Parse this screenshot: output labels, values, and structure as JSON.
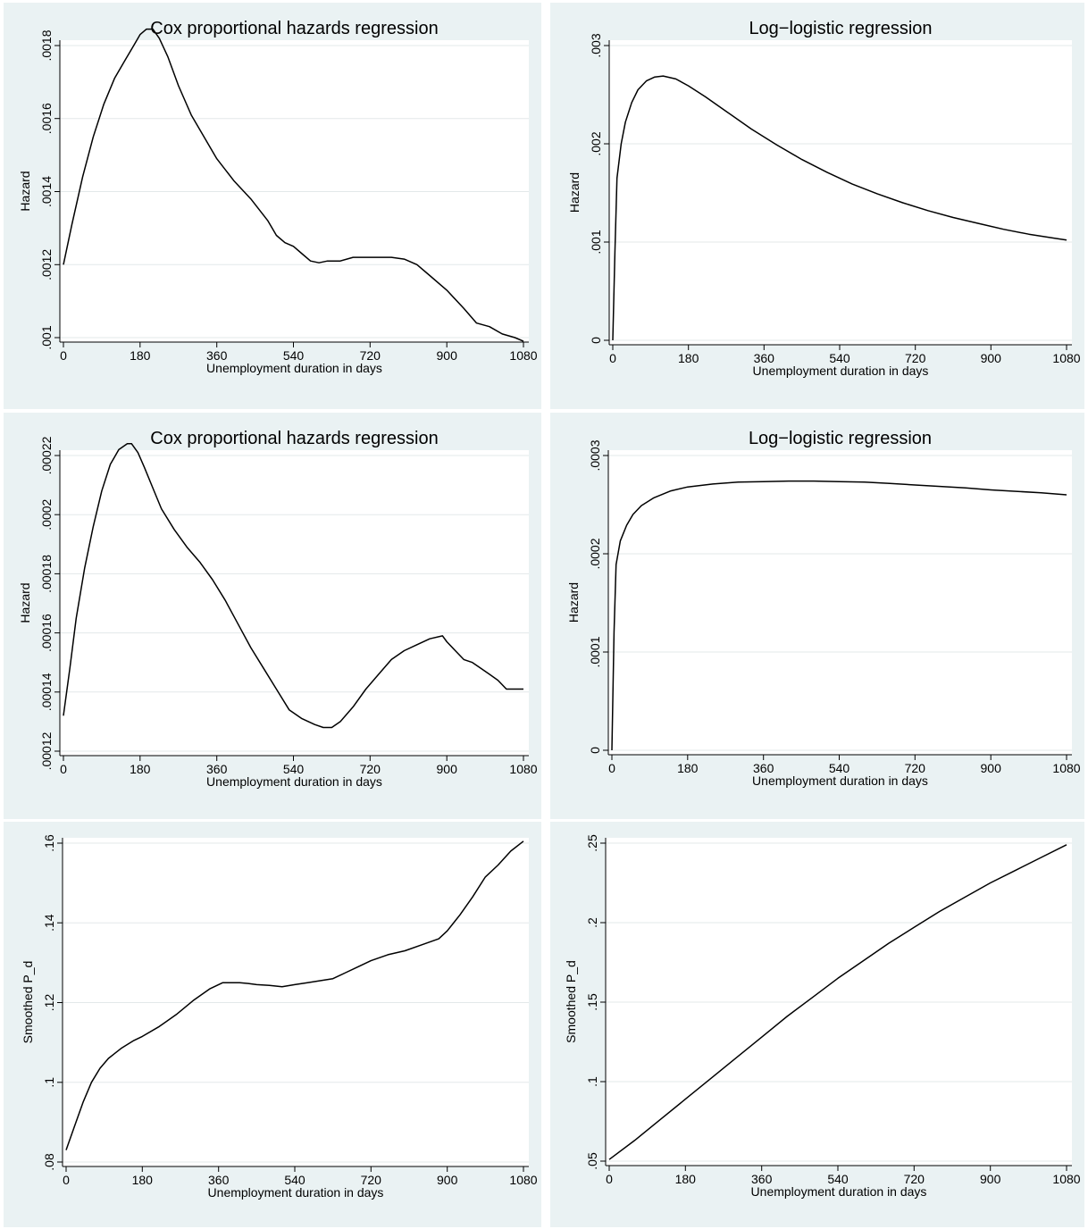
{
  "chart_data": [
    {
      "type": "line",
      "title": "Cox proportional hazards regression",
      "xlabel": "Unemployment duration in days",
      "ylabel": "Hazard",
      "xlim": [
        0,
        1080
      ],
      "ylim": [
        0.001,
        0.0018
      ],
      "xticks": [
        0,
        180,
        360,
        540,
        720,
        900,
        1080
      ],
      "xtick_labels": [
        "0",
        "180",
        "360",
        "540",
        "720",
        "900",
        "1080"
      ],
      "yticks": [
        0.001,
        0.0012,
        0.0014,
        0.0016,
        0.0018
      ],
      "ytick_labels": [
        ".001",
        ".0012",
        ".0014",
        ".0016",
        ".0018"
      ],
      "grid": true,
      "series": [
        {
          "x": [
            0,
            20,
            45,
            70,
            95,
            120,
            145,
            165,
            180,
            195,
            210,
            225,
            245,
            270,
            300,
            330,
            360,
            400,
            440,
            480,
            500,
            520,
            540,
            560,
            580,
            600,
            620,
            650,
            680,
            710,
            740,
            770,
            800,
            830,
            860,
            900,
            940,
            970,
            1000,
            1030,
            1060,
            1080
          ],
          "y": [
            0.0012,
            0.00131,
            0.00144,
            0.00155,
            0.00164,
            0.00171,
            0.00176,
            0.0018,
            0.00183,
            0.001845,
            0.001845,
            0.00182,
            0.00177,
            0.00169,
            0.00161,
            0.00155,
            0.00149,
            0.00143,
            0.00138,
            0.00132,
            0.00128,
            0.00126,
            0.00125,
            0.00123,
            0.00121,
            0.001205,
            0.00121,
            0.00121,
            0.00122,
            0.00122,
            0.00122,
            0.00122,
            0.001215,
            0.0012,
            0.00117,
            0.00113,
            0.00108,
            0.00104,
            0.00103,
            0.00101,
            0.001,
            0.00099
          ]
        }
      ]
    },
    {
      "type": "line",
      "title": "Log−logistic regression",
      "xlabel": "Unemployment duration in days",
      "ylabel": "Hazard",
      "xlim": [
        0,
        1080
      ],
      "ylim": [
        0,
        0.003
      ],
      "xticks": [
        0,
        180,
        360,
        540,
        720,
        900,
        1080
      ],
      "xtick_labels": [
        "0",
        "180",
        "360",
        "540",
        "720",
        "900",
        "1080"
      ],
      "yticks": [
        0,
        0.001,
        0.002,
        0.003
      ],
      "ytick_labels": [
        "0",
        ".001",
        ".002",
        ".003"
      ],
      "grid": true,
      "series": [
        {
          "x": [
            0,
            5,
            10,
            20,
            30,
            45,
            60,
            80,
            100,
            120,
            150,
            180,
            220,
            270,
            330,
            390,
            450,
            510,
            570,
            630,
            690,
            750,
            810,
            870,
            930,
            990,
            1050,
            1080
          ],
          "y": [
            0,
            0.0009,
            0.00165,
            0.002,
            0.00222,
            0.00242,
            0.00255,
            0.00264,
            0.00268,
            0.00269,
            0.00266,
            0.00259,
            0.00248,
            0.00233,
            0.00215,
            0.00199,
            0.00184,
            0.00171,
            0.00159,
            0.00149,
            0.0014,
            0.00132,
            0.00125,
            0.00119,
            0.00113,
            0.00108,
            0.00104,
            0.00102
          ]
        }
      ]
    },
    {
      "type": "line",
      "title": "Cox proportional hazards regression",
      "xlabel": "Unemployment duration in days",
      "ylabel": "Hazard",
      "xlim": [
        0,
        1080
      ],
      "ylim": [
        0.00012,
        0.00022
      ],
      "xticks": [
        0,
        180,
        360,
        540,
        720,
        900,
        1080
      ],
      "xtick_labels": [
        "0",
        "180",
        "360",
        "540",
        "720",
        "900",
        "1080"
      ],
      "yticks": [
        0.00012,
        0.00014,
        0.00016,
        0.00018,
        0.0002,
        0.00022
      ],
      "ytick_labels": [
        ".00012",
        ".00014",
        ".00016",
        ".00018",
        ".0002",
        ".00022"
      ],
      "grid": true,
      "series": [
        {
          "x": [
            0,
            15,
            30,
            50,
            70,
            90,
            110,
            130,
            150,
            160,
            175,
            190,
            210,
            230,
            260,
            290,
            320,
            350,
            380,
            410,
            440,
            470,
            500,
            530,
            560,
            590,
            610,
            630,
            650,
            680,
            710,
            740,
            770,
            800,
            830,
            860,
            890,
            900,
            920,
            940,
            960,
            980,
            1000,
            1020,
            1040,
            1060,
            1080
          ],
          "y": [
            0.000132,
            0.000148,
            0.000165,
            0.000182,
            0.000196,
            0.000208,
            0.000217,
            0.000222,
            0.000224,
            0.000224,
            0.000221,
            0.000216,
            0.000209,
            0.000202,
            0.000195,
            0.000189,
            0.000184,
            0.000178,
            0.000171,
            0.000163,
            0.000155,
            0.000148,
            0.000141,
            0.000134,
            0.000131,
            0.000129,
            0.000128,
            0.000128,
            0.00013,
            0.000135,
            0.000141,
            0.000146,
            0.000151,
            0.000154,
            0.000156,
            0.000158,
            0.000159,
            0.000157,
            0.000154,
            0.000151,
            0.00015,
            0.000148,
            0.000146,
            0.000144,
            0.000141,
            0.000141,
            0.000141
          ]
        }
      ]
    },
    {
      "type": "line",
      "title": "Log−logistic regression",
      "xlabel": "Unemployment duration in days",
      "ylabel": "Hazard",
      "xlim": [
        0,
        1080
      ],
      "ylim": [
        0,
        0.0003
      ],
      "xticks": [
        0,
        180,
        360,
        540,
        720,
        900,
        1080
      ],
      "xtick_labels": [
        "0",
        "180",
        "360",
        "540",
        "720",
        "900",
        "1080"
      ],
      "yticks": [
        0,
        0.0001,
        0.0002,
        0.0003
      ],
      "ytick_labels": [
        "0",
        ".0001",
        ".0002",
        ".0003"
      ],
      "grid": true,
      "series": [
        {
          "x": [
            0,
            5,
            10,
            20,
            35,
            50,
            70,
            100,
            140,
            180,
            240,
            300,
            360,
            420,
            480,
            540,
            600,
            660,
            720,
            780,
            840,
            900,
            960,
            1020,
            1080
          ],
          "y": [
            0,
            0.00012,
            0.000189,
            0.000213,
            0.000229,
            0.00024,
            0.000249,
            0.000257,
            0.000264,
            0.000268,
            0.000271,
            0.000273,
            0.0002735,
            0.000274,
            0.000274,
            0.0002735,
            0.000273,
            0.0002715,
            0.00027,
            0.0002685,
            0.000267,
            0.000265,
            0.0002635,
            0.000262,
            0.00026
          ]
        }
      ]
    },
    {
      "type": "line",
      "title": "",
      "xlabel": "Unemployment duration in days",
      "ylabel": "Smoothed P_d",
      "xlim": [
        0,
        1080
      ],
      "ylim": [
        0.08,
        0.16
      ],
      "xticks": [
        0,
        180,
        360,
        540,
        720,
        900,
        1080
      ],
      "xtick_labels": [
        "0",
        "180",
        "360",
        "540",
        "720",
        "900",
        "1080"
      ],
      "yticks": [
        0.08,
        0.1,
        0.12,
        0.14,
        0.16
      ],
      "ytick_labels": [
        ".08",
        ".1",
        ".12",
        ".14",
        ".16"
      ],
      "grid": true,
      "series": [
        {
          "x": [
            0,
            20,
            40,
            60,
            80,
            100,
            130,
            160,
            180,
            220,
            260,
            300,
            340,
            370,
            390,
            410,
            430,
            450,
            480,
            510,
            540,
            570,
            600,
            630,
            660,
            690,
            720,
            760,
            800,
            840,
            880,
            900,
            930,
            960,
            990,
            1020,
            1050,
            1080
          ],
          "y": [
            0.083,
            0.089,
            0.095,
            0.1,
            0.1035,
            0.106,
            0.1085,
            0.1105,
            0.1115,
            0.114,
            0.117,
            0.1205,
            0.1235,
            0.125,
            0.125,
            0.125,
            0.1248,
            0.1245,
            0.1243,
            0.124,
            0.1245,
            0.125,
            0.1255,
            0.126,
            0.1275,
            0.129,
            0.1305,
            0.132,
            0.133,
            0.1345,
            0.136,
            0.138,
            0.142,
            0.1465,
            0.1515,
            0.1545,
            0.158,
            0.1605
          ]
        }
      ]
    },
    {
      "type": "line",
      "title": "",
      "xlabel": "Unemployment duration in days",
      "ylabel": "Smoothed P_d",
      "xlim": [
        0,
        1080
      ],
      "ylim": [
        0.05,
        0.25
      ],
      "xticks": [
        0,
        180,
        360,
        540,
        720,
        900,
        1080
      ],
      "xtick_labels": [
        "0",
        "180",
        "360",
        "540",
        "720",
        "900",
        "1080"
      ],
      "yticks": [
        0.05,
        0.1,
        0.15,
        0.2,
        0.25
      ],
      "ytick_labels": [
        ".05",
        ".1",
        ".15",
        ".2",
        ".25"
      ],
      "grid": true,
      "series": [
        {
          "x": [
            0,
            60,
            120,
            180,
            240,
            300,
            360,
            420,
            480,
            540,
            600,
            660,
            720,
            780,
            840,
            900,
            960,
            1020,
            1080
          ],
          "y": [
            0.051,
            0.063,
            0.076,
            0.089,
            0.102,
            0.115,
            0.128,
            0.141,
            0.153,
            0.165,
            0.176,
            0.187,
            0.197,
            0.207,
            0.216,
            0.225,
            0.233,
            0.241,
            0.249
          ]
        }
      ]
    }
  ]
}
